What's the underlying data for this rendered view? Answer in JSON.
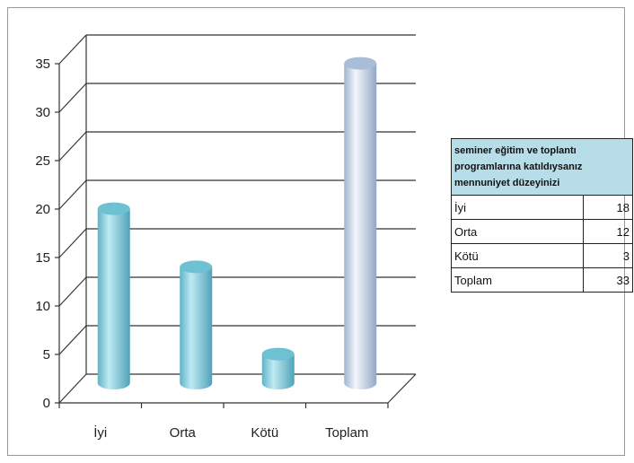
{
  "chart_data": {
    "type": "bar",
    "style": "3d-cylinder",
    "categories": [
      "İyi",
      "Orta",
      "Kötü",
      "Toplam"
    ],
    "values": [
      18,
      12,
      3,
      33
    ],
    "ylim": [
      0,
      35
    ],
    "yticks": [
      0,
      5,
      10,
      15,
      20,
      25,
      30,
      35
    ],
    "grid": true,
    "colors": [
      "#8fd2e0",
      "#8fd2e0",
      "#8fd2e0",
      "#c9d9ee"
    ]
  },
  "table": {
    "header": "seminer eğitim ve toplantı programlarına katıldıysanız mennuniyet düzeyinizi",
    "rows": [
      {
        "label": "İyi",
        "value": "18"
      },
      {
        "label": "Orta",
        "value": "12"
      },
      {
        "label": "Kötü",
        "value": "3"
      },
      {
        "label": "Toplam",
        "value": "33"
      }
    ]
  }
}
